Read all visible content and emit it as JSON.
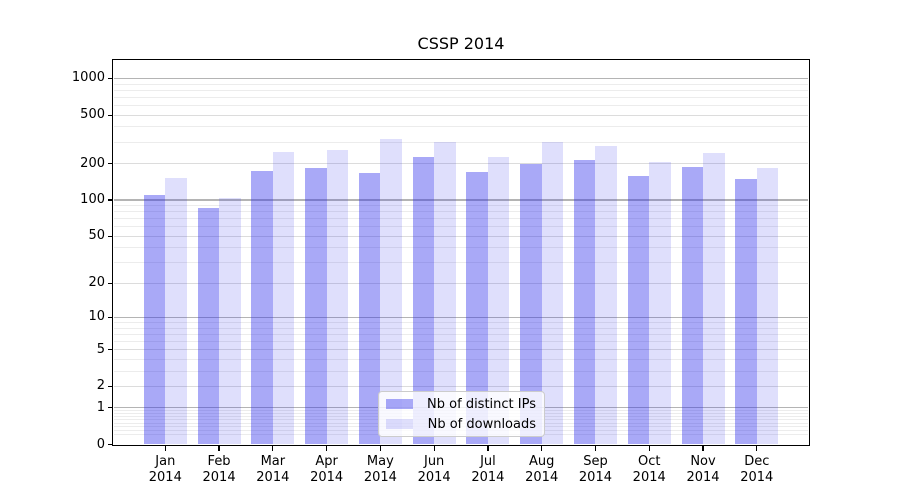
{
  "chart_data": {
    "type": "bar",
    "title": "CSSP 2014",
    "categories": [
      "Jan 2014",
      "Feb 2014",
      "Mar 2014",
      "Apr 2014",
      "May 2014",
      "Jun 2014",
      "Jul 2014",
      "Aug 2014",
      "Sep 2014",
      "Oct 2014",
      "Nov 2014",
      "Dec 2014"
    ],
    "series": [
      {
        "name": "Nb of distinct IPs",
        "color": "rgba(40,40,235,0.40)",
        "values": [
          110,
          85,
          175,
          182,
          167,
          225,
          171,
          200,
          212,
          158,
          188,
          149
        ]
      },
      {
        "name": "Nb of downloads",
        "color": "rgba(40,40,235,0.15)",
        "values": [
          151,
          104,
          249,
          258,
          320,
          301,
          228,
          303,
          280,
          206,
          245,
          185
        ]
      }
    ],
    "xlabel": "",
    "ylabel": "",
    "yscale": "symlog (log10(1+y))",
    "y_major_ticks": [
      0,
      1,
      2,
      5,
      10,
      20,
      50,
      100,
      200,
      500,
      1000
    ],
    "ylim": [
      0,
      1400
    ],
    "grid": true,
    "legend_position": "lower center"
  },
  "colors": {
    "bar_distinct_ips": "rgba(40,40,235,0.40)",
    "bar_downloads": "rgba(40,40,235,0.15)",
    "grid_decade": "#b4b4b4",
    "grid_major": "#dcdcdc",
    "grid_minor": "#ececec",
    "axis": "#000000",
    "legend_border": "#cccccc"
  }
}
